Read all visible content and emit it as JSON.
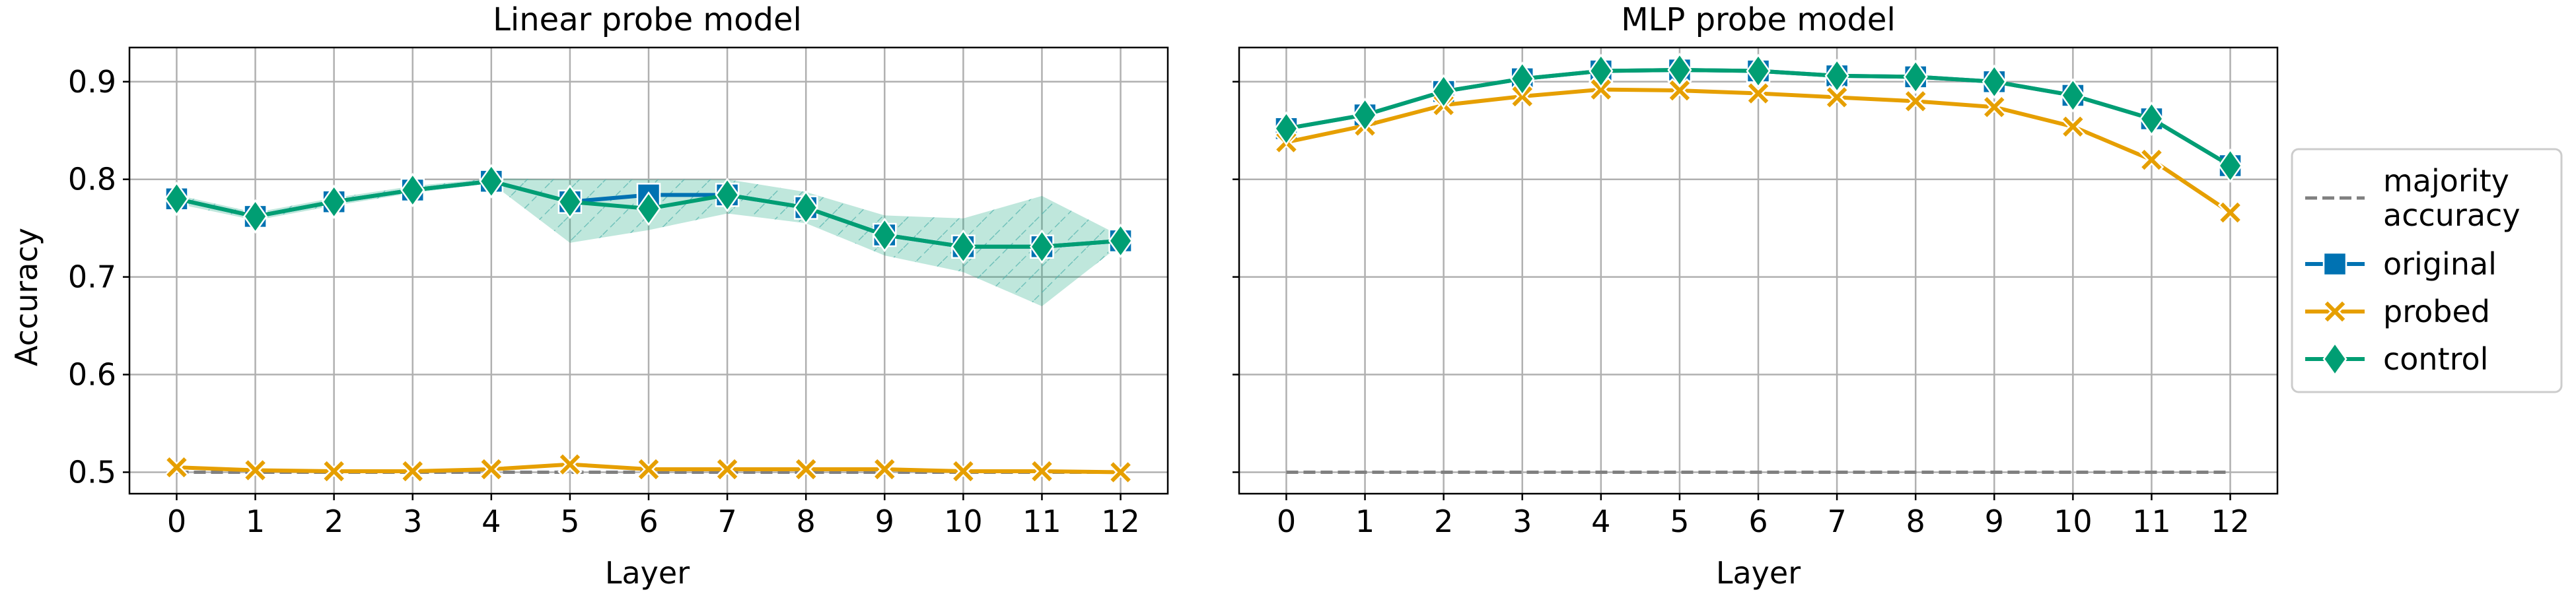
{
  "chart_data": [
    {
      "type": "line",
      "title": "Linear probe model",
      "xlabel": "Layer",
      "ylabel": "Accuracy",
      "x": [
        0,
        1,
        2,
        3,
        4,
        5,
        6,
        7,
        8,
        9,
        10,
        11,
        12
      ],
      "xlim": [
        -0.6,
        12.6
      ],
      "ylim": [
        0.478,
        0.935
      ],
      "yticks": [
        "0.5",
        "0.6",
        "0.7",
        "0.8",
        "0.9"
      ],
      "grid": true,
      "series": [
        {
          "name": "majority accuracy",
          "style": "dashed",
          "color": "#808080",
          "values": [
            0.5,
            0.5,
            0.5,
            0.5,
            0.5,
            0.5,
            0.5,
            0.5,
            0.5,
            0.5,
            0.5,
            0.5,
            0.5
          ]
        },
        {
          "name": "original",
          "marker": "square",
          "color": "#0072b2",
          "values": [
            0.78,
            0.762,
            0.777,
            0.789,
            0.798,
            0.777,
            0.784,
            0.784,
            0.771,
            0.743,
            0.731,
            0.731,
            0.737
          ]
        },
        {
          "name": "probed",
          "marker": "x",
          "color": "#e69f00",
          "values": [
            0.505,
            0.502,
            0.501,
            0.501,
            0.503,
            0.508,
            0.503,
            0.503,
            0.503,
            0.503,
            0.501,
            0.501,
            0.5
          ]
        },
        {
          "name": "control",
          "marker": "diamond",
          "color": "#009e73",
          "values": [
            0.78,
            0.762,
            0.777,
            0.789,
            0.798,
            0.777,
            0.77,
            0.784,
            0.771,
            0.743,
            0.731,
            0.731,
            0.737
          ]
        }
      ],
      "control_band": {
        "lower": [
          0.775,
          0.758,
          0.773,
          0.786,
          0.796,
          0.735,
          0.748,
          0.765,
          0.755,
          0.722,
          0.705,
          0.67,
          0.733
        ],
        "upper": [
          0.784,
          0.766,
          0.781,
          0.793,
          0.801,
          0.8,
          0.8,
          0.8,
          0.787,
          0.763,
          0.76,
          0.783,
          0.742
        ]
      }
    },
    {
      "type": "line",
      "title": "MLP probe model",
      "xlabel": "Layer",
      "ylabel": "",
      "x": [
        0,
        1,
        2,
        3,
        4,
        5,
        6,
        7,
        8,
        9,
        10,
        11,
        12
      ],
      "xlim": [
        -0.6,
        12.6
      ],
      "ylim": [
        0.478,
        0.935
      ],
      "grid": true,
      "series": [
        {
          "name": "majority accuracy",
          "style": "dashed",
          "color": "#808080",
          "values": [
            0.5,
            0.5,
            0.5,
            0.5,
            0.5,
            0.5,
            0.5,
            0.5,
            0.5,
            0.5,
            0.5,
            0.5,
            0.5
          ]
        },
        {
          "name": "original",
          "marker": "square",
          "color": "#0072b2",
          "values": [
            0.852,
            0.866,
            0.89,
            0.903,
            0.911,
            0.912,
            0.911,
            0.906,
            0.905,
            0.9,
            0.886,
            0.862,
            0.814
          ]
        },
        {
          "name": "probed",
          "marker": "x",
          "color": "#e69f00",
          "values": [
            0.838,
            0.855,
            0.876,
            0.885,
            0.892,
            0.891,
            0.888,
            0.884,
            0.88,
            0.874,
            0.854,
            0.82,
            0.766
          ]
        },
        {
          "name": "control",
          "marker": "diamond",
          "color": "#009e73",
          "values": [
            0.852,
            0.866,
            0.89,
            0.903,
            0.911,
            0.912,
            0.911,
            0.906,
            0.905,
            0.9,
            0.886,
            0.862,
            0.814
          ]
        }
      ]
    }
  ],
  "legend": {
    "placement": "right",
    "items": [
      {
        "label": "majority accuracy",
        "lines": [
          "majority",
          "accuracy"
        ],
        "style": "dashed",
        "color": "#808080"
      },
      {
        "label": "original",
        "lines": [
          "original"
        ],
        "marker": "square",
        "color": "#0072b2"
      },
      {
        "label": "probed",
        "lines": [
          "probed"
        ],
        "marker": "x",
        "color": "#e69f00"
      },
      {
        "label": "control",
        "lines": [
          "control"
        ],
        "marker": "diamond",
        "color": "#009e73"
      }
    ]
  }
}
